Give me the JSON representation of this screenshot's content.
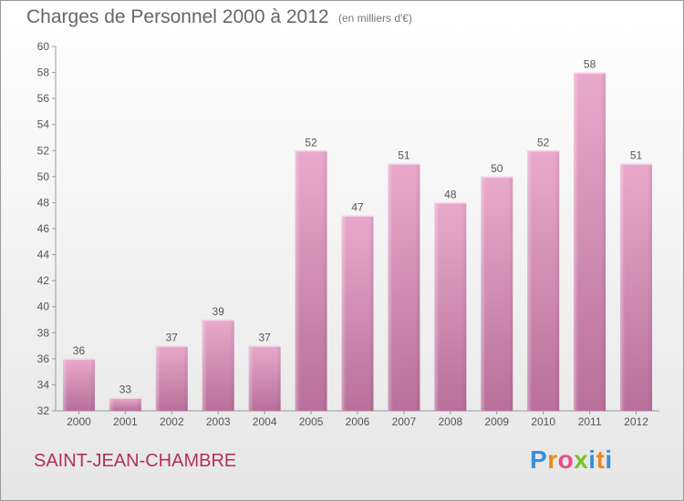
{
  "header": {
    "title": "Charges de Personnel 2000 à 2012",
    "subtitle": "(en milliers d'€)"
  },
  "footer": {
    "commune": "SAINT-JEAN-CHAMBRE",
    "logo_text": "Proxiti"
  },
  "colors": {
    "bar_top": "#e9a9cc",
    "bar_bottom": "#b8709a",
    "commune_text": "#b2305c"
  },
  "chart_data": {
    "type": "bar",
    "title": "Charges de Personnel 2000 à 2012",
    "subtitle": "(en milliers d'€)",
    "xlabel": "",
    "ylabel": "",
    "categories": [
      "2000",
      "2001",
      "2002",
      "2003",
      "2004",
      "2005",
      "2006",
      "2007",
      "2008",
      "2009",
      "2010",
      "2011",
      "2012"
    ],
    "values": [
      36,
      33,
      37,
      39,
      37,
      52,
      47,
      51,
      48,
      50,
      52,
      58,
      51
    ],
    "ylim": [
      32,
      60
    ],
    "yticks": [
      32,
      34,
      36,
      38,
      40,
      42,
      44,
      46,
      48,
      50,
      52,
      54,
      56,
      58,
      60
    ],
    "grid": false,
    "legend": "none"
  }
}
